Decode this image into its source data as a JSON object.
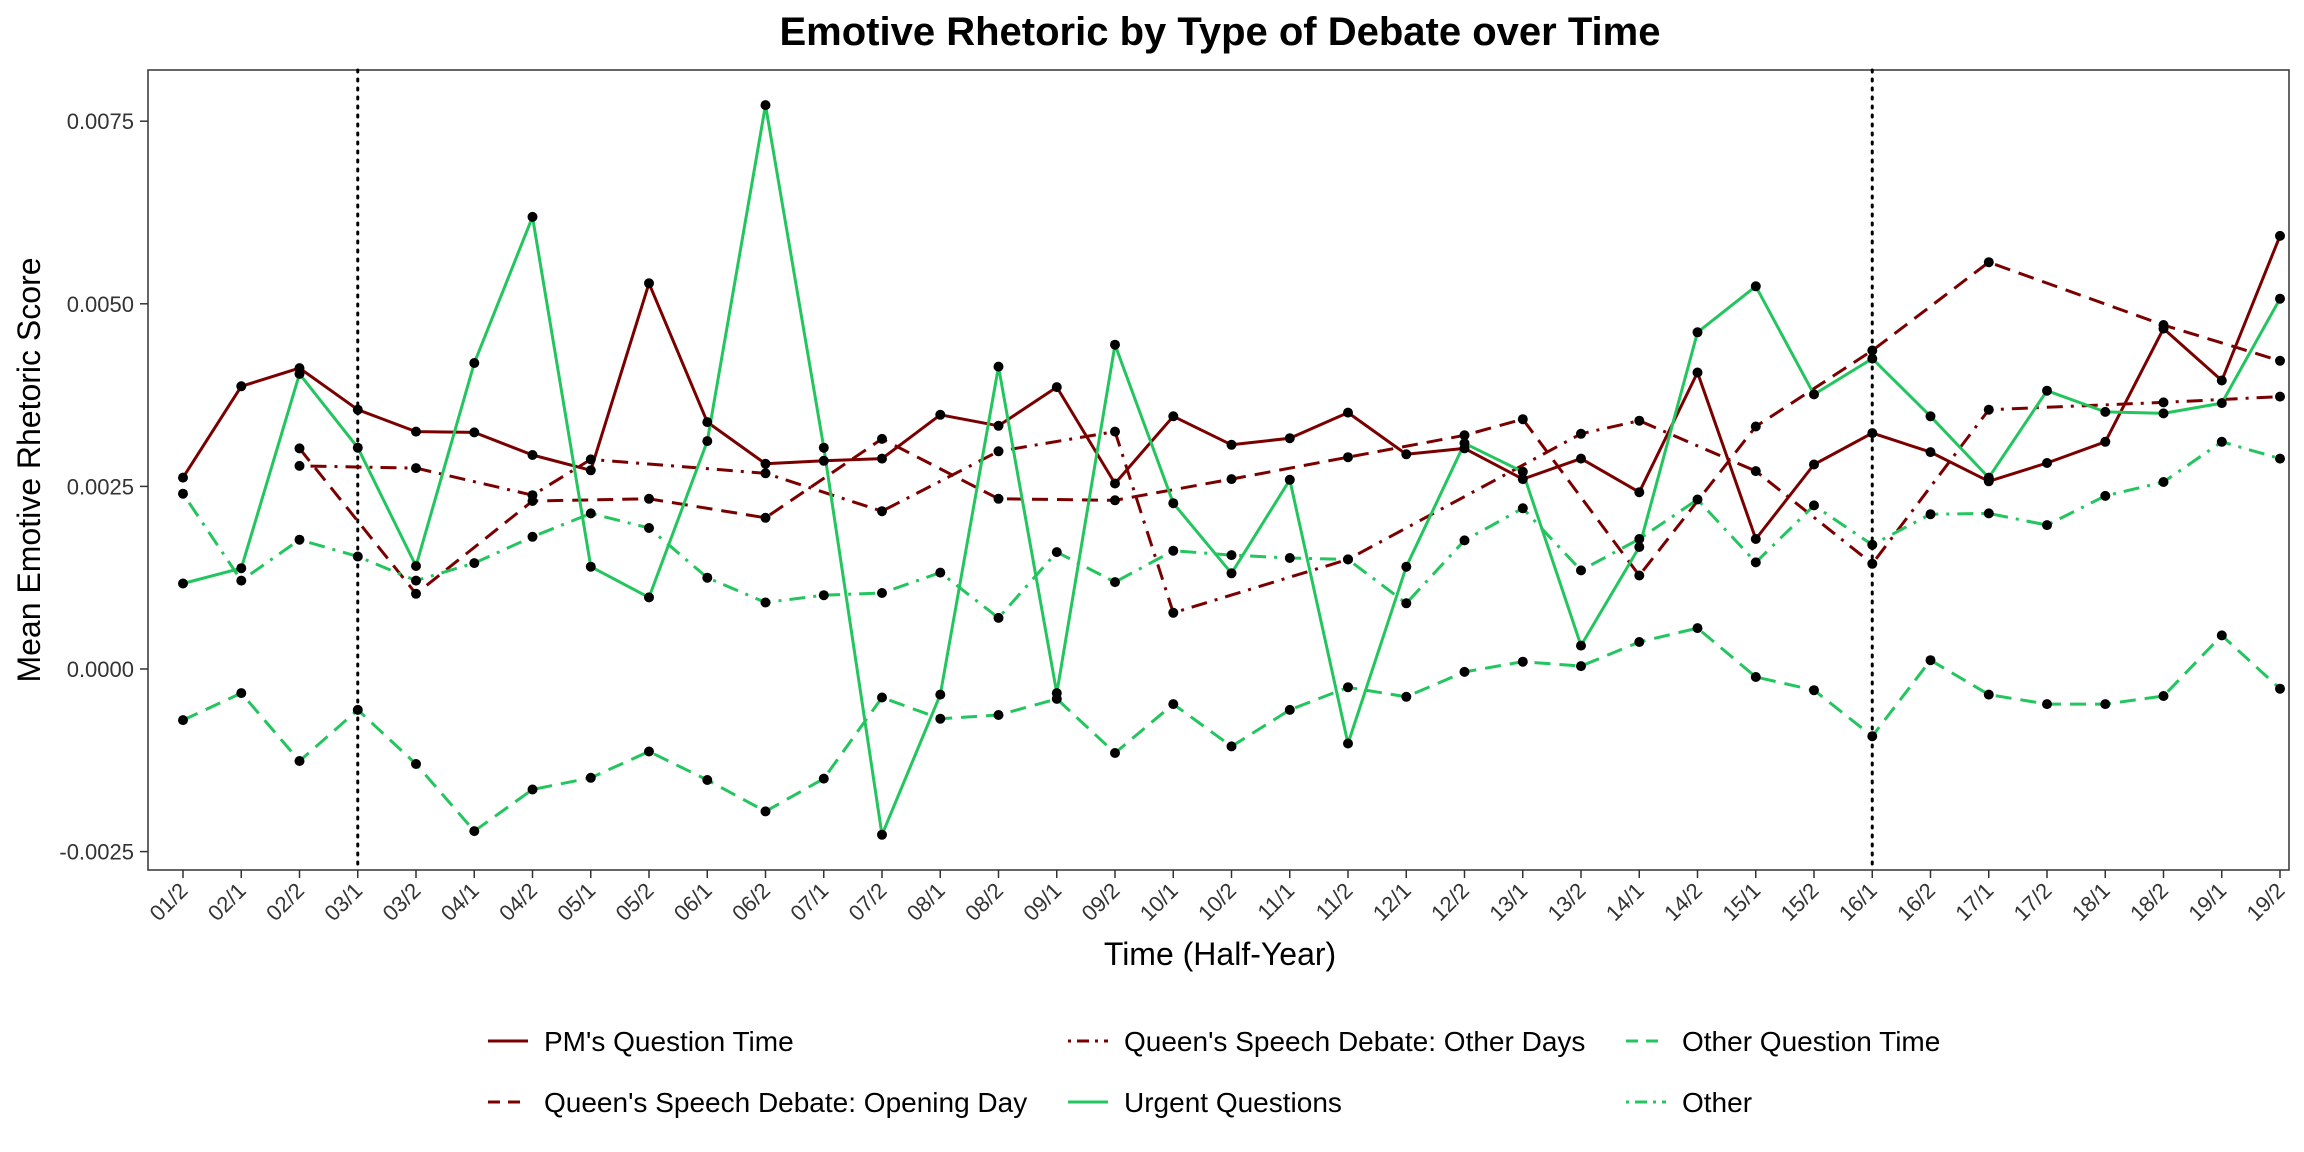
{
  "chart_data": {
    "type": "line",
    "title": "Emotive Rhetoric by Type of Debate over Time",
    "xlabel": "Time (Half-Year)",
    "ylabel": "Mean Emotive Rhetoric Score",
    "ylim": [
      -0.0028,
      0.0082
    ],
    "yticks": [
      -0.0025,
      0.0,
      0.0025,
      0.005,
      0.0075
    ],
    "ytick_labels": [
      "-0.0025",
      "0.0000",
      "0.0025",
      "0.0050",
      "0.0075"
    ],
    "categories": [
      "01/2",
      "02/1",
      "02/2",
      "03/1",
      "03/2",
      "04/1",
      "04/2",
      "05/1",
      "05/2",
      "06/1",
      "06/2",
      "07/1",
      "07/2",
      "08/1",
      "08/2",
      "09/1",
      "09/2",
      "10/1",
      "10/2",
      "11/1",
      "11/2",
      "12/1",
      "12/2",
      "13/1",
      "13/2",
      "14/1",
      "14/2",
      "15/1",
      "15/2",
      "16/1",
      "16/2",
      "17/1",
      "17/2",
      "18/1",
      "18/2",
      "19/1",
      "19/2"
    ],
    "vertical_reference_lines": [
      "03/1",
      "16/1"
    ],
    "grid": false,
    "legend_position": "bottom",
    "series": [
      {
        "name": "PM's Question Time",
        "color": "#7a0000",
        "dash": "solid",
        "points": [
          [
            "01/2",
            0.00262
          ],
          [
            "02/1",
            0.00387
          ],
          [
            "02/2",
            0.00412
          ],
          [
            "03/1",
            0.00355
          ],
          [
            "03/2",
            0.00325
          ],
          [
            "04/1",
            0.00324
          ],
          [
            "04/2",
            0.00293
          ],
          [
            "05/1",
            0.00272
          ],
          [
            "05/2",
            0.00528
          ],
          [
            "06/1",
            0.00338
          ],
          [
            "06/2",
            0.00281
          ],
          [
            "07/1",
            0.00285
          ],
          [
            "07/2",
            0.00288
          ],
          [
            "08/1",
            0.00348
          ],
          [
            "08/2",
            0.00333
          ],
          [
            "09/1",
            0.00386
          ],
          [
            "09/2",
            0.00254
          ],
          [
            "10/1",
            0.00346
          ],
          [
            "10/2",
            0.00307
          ],
          [
            "11/1",
            0.00316
          ],
          [
            "11/2",
            0.00351
          ],
          [
            "12/1",
            0.00294
          ],
          [
            "12/2",
            0.00302
          ],
          [
            "13/1",
            0.0026
          ],
          [
            "13/2",
            0.00288
          ],
          [
            "14/1",
            0.00242
          ],
          [
            "14/2",
            0.00406
          ],
          [
            "15/1",
            0.00178
          ],
          [
            "15/2",
            0.0028
          ],
          [
            "16/1",
            0.00323
          ],
          [
            "16/2",
            0.00297
          ],
          [
            "17/1",
            0.00257
          ],
          [
            "17/2",
            0.00282
          ],
          [
            "18/1",
            0.00311
          ],
          [
            "18/2",
            0.00466
          ],
          [
            "19/1",
            0.00395
          ],
          [
            "19/2",
            0.00593
          ]
        ]
      },
      {
        "name": "Queen's Speech Debate: Opening Day",
        "color": "#7a0000",
        "dash": "dashed",
        "points": [
          [
            "02/2",
            0.00302
          ],
          [
            "03/2",
            0.00103
          ],
          [
            "04/2",
            0.0023
          ],
          [
            "05/2",
            0.00233
          ],
          [
            "06/2",
            0.00207
          ],
          [
            "07/2",
            0.00315
          ],
          [
            "08/2",
            0.00233
          ],
          [
            "09/2",
            0.00231
          ],
          [
            "10/2",
            0.0026
          ],
          [
            "11/2",
            0.0029
          ],
          [
            "12/2",
            0.0032
          ],
          [
            "13/1",
            0.00342
          ],
          [
            "14/1",
            0.00128
          ],
          [
            "15/1",
            0.00332
          ],
          [
            "16/1",
            0.00436
          ],
          [
            "17/1",
            0.00557
          ],
          [
            "18/2",
            0.00471
          ],
          [
            "19/2",
            0.00422
          ]
        ]
      },
      {
        "name": "Queen's Speech Debate: Other Days",
        "color": "#7a0000",
        "dash": "dotdash",
        "points": [
          [
            "02/2",
            0.00278
          ],
          [
            "03/2",
            0.00275
          ],
          [
            "04/2",
            0.00238
          ],
          [
            "05/1",
            0.00287
          ],
          [
            "06/2",
            0.00268
          ],
          [
            "07/2",
            0.00216
          ],
          [
            "08/2",
            0.00298
          ],
          [
            "09/2",
            0.00325
          ],
          [
            "10/1",
            0.00077
          ],
          [
            "11/2",
            0.0015
          ],
          [
            "13/2",
            0.00322
          ],
          [
            "14/1",
            0.0034
          ],
          [
            "15/1",
            0.00271
          ],
          [
            "16/1",
            0.00144
          ],
          [
            "17/1",
            0.00355
          ],
          [
            "18/2",
            0.00365
          ],
          [
            "19/2",
            0.00373
          ]
        ]
      },
      {
        "name": "Urgent Questions",
        "color": "#22c55e",
        "dash": "solid",
        "points": [
          [
            "01/2",
            0.00117
          ],
          [
            "02/1",
            0.00138
          ],
          [
            "02/2",
            0.00404
          ],
          [
            "03/1",
            0.00303
          ],
          [
            "03/2",
            0.00141
          ],
          [
            "04/1",
            0.00419
          ],
          [
            "04/2",
            0.00619
          ],
          [
            "05/1",
            0.0014
          ],
          [
            "05/2",
            0.00098
          ],
          [
            "06/1",
            0.00312
          ],
          [
            "06/2",
            0.00772
          ],
          [
            "07/1",
            0.00303
          ],
          [
            "07/2",
            -0.00227
          ],
          [
            "08/1",
            -0.00035
          ],
          [
            "08/2",
            0.00414
          ],
          [
            "09/1",
            -0.00033
          ],
          [
            "09/2",
            0.00444
          ],
          [
            "10/1",
            0.00227
          ],
          [
            "10/2",
            0.00131
          ],
          [
            "11/1",
            0.00259
          ],
          [
            "11/2",
            -0.00102
          ],
          [
            "12/1",
            0.0014
          ],
          [
            "12/2",
            0.00309
          ],
          [
            "13/1",
            0.0027
          ],
          [
            "13/2",
            0.00032
          ],
          [
            "14/1",
            0.00167
          ],
          [
            "14/2",
            0.00461
          ],
          [
            "15/1",
            0.00524
          ],
          [
            "15/2",
            0.00376
          ],
          [
            "16/1",
            0.00425
          ],
          [
            "16/2",
            0.00346
          ],
          [
            "17/1",
            0.00262
          ],
          [
            "17/2",
            0.00381
          ],
          [
            "18/1",
            0.00352
          ],
          [
            "18/2",
            0.0035
          ],
          [
            "19/1",
            0.00364
          ],
          [
            "19/2",
            0.00507
          ]
        ]
      },
      {
        "name": "Other Question Time",
        "color": "#22c55e",
        "dash": "dashed",
        "points": [
          [
            "01/2",
            -0.0007
          ],
          [
            "02/1",
            -0.00033
          ],
          [
            "02/2",
            -0.00126
          ],
          [
            "03/1",
            -0.00056
          ],
          [
            "03/2",
            -0.0013
          ],
          [
            "04/1",
            -0.00222
          ],
          [
            "04/2",
            -0.00165
          ],
          [
            "05/1",
            -0.00149
          ],
          [
            "05/2",
            -0.00113
          ],
          [
            "06/1",
            -0.00152
          ],
          [
            "06/2",
            -0.00195
          ],
          [
            "07/1",
            -0.0015
          ],
          [
            "07/2",
            -0.00039
          ],
          [
            "08/1",
            -0.00068
          ],
          [
            "08/2",
            -0.00063
          ],
          [
            "09/1",
            -0.00041
          ],
          [
            "09/2",
            -0.00115
          ],
          [
            "10/1",
            -0.00048
          ],
          [
            "10/2",
            -0.00106
          ],
          [
            "11/1",
            -0.00056
          ],
          [
            "11/2",
            -0.00025
          ],
          [
            "12/1",
            -0.00038
          ],
          [
            "12/2",
            -4e-05
          ],
          [
            "13/1",
            0.0001
          ],
          [
            "13/2",
            4e-05
          ],
          [
            "14/1",
            0.00037
          ],
          [
            "14/2",
            0.00056
          ],
          [
            "15/1",
            -0.00011
          ],
          [
            "15/2",
            -0.00029
          ],
          [
            "16/1",
            -0.00092
          ],
          [
            "16/2",
            0.00012
          ],
          [
            "17/1",
            -0.00035
          ],
          [
            "17/2",
            -0.00048
          ],
          [
            "18/1",
            -0.00048
          ],
          [
            "18/2",
            -0.00037
          ],
          [
            "19/1",
            0.00046
          ],
          [
            "19/2",
            -0.00027
          ]
        ]
      },
      {
        "name": "Other",
        "color": "#22c55e",
        "dash": "dotdash",
        "points": [
          [
            "01/2",
            0.0024
          ],
          [
            "02/1",
            0.00121
          ],
          [
            "02/2",
            0.00177
          ],
          [
            "03/1",
            0.00154
          ],
          [
            "03/2",
            0.00121
          ],
          [
            "04/1",
            0.00145
          ],
          [
            "04/2",
            0.00181
          ],
          [
            "05/1",
            0.00213
          ],
          [
            "05/2",
            0.00193
          ],
          [
            "06/1",
            0.00125
          ],
          [
            "06/2",
            0.00091
          ],
          [
            "07/1",
            0.00101
          ],
          [
            "07/2",
            0.00104
          ],
          [
            "08/1",
            0.00132
          ],
          [
            "08/2",
            0.0007
          ],
          [
            "09/1",
            0.0016
          ],
          [
            "09/2",
            0.00119
          ],
          [
            "10/1",
            0.00162
          ],
          [
            "10/2",
            0.00156
          ],
          [
            "11/1",
            0.00152
          ],
          [
            "11/2",
            0.0015
          ],
          [
            "12/1",
            0.0009
          ],
          [
            "12/2",
            0.00176
          ],
          [
            "13/1",
            0.0022
          ],
          [
            "13/2",
            0.00135
          ],
          [
            "14/1",
            0.00178
          ],
          [
            "14/2",
            0.00232
          ],
          [
            "15/1",
            0.00146
          ],
          [
            "15/2",
            0.00224
          ],
          [
            "16/1",
            0.0017
          ],
          [
            "16/2",
            0.00212
          ],
          [
            "17/1",
            0.00213
          ],
          [
            "17/2",
            0.00197
          ],
          [
            "18/1",
            0.00237
          ],
          [
            "18/2",
            0.00256
          ],
          [
            "19/1",
            0.00311
          ],
          [
            "19/2",
            0.00288
          ]
        ]
      }
    ]
  }
}
